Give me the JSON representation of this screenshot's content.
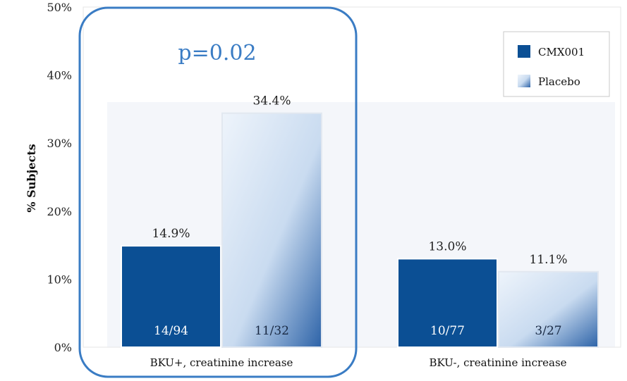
{
  "chart_data": {
    "type": "bar",
    "ylabel": "% Subjects",
    "ylim": [
      0,
      50
    ],
    "yticks": [
      "0%",
      "10%",
      "20%",
      "30%",
      "40%",
      "50%"
    ],
    "categories": [
      "BKU+, creatinine increase",
      "BKU-, creatinine increase"
    ],
    "series": [
      {
        "name": "CMX001",
        "values": [
          14.9,
          13.0
        ],
        "labels": [
          "14.9%",
          "13.0%"
        ],
        "counts": [
          "14/94",
          "10/77"
        ],
        "color": "#0b4f94"
      },
      {
        "name": "Placebo",
        "values": [
          34.4,
          11.1
        ],
        "labels": [
          "34.4%",
          "11.1%"
        ],
        "counts": [
          "11/32",
          "3/27"
        ],
        "color": "#c9dbf0"
      }
    ],
    "annotation": {
      "text": "p=0.02",
      "color": "#3a7cc4",
      "category_index": 0
    },
    "legend_position": "top-right",
    "grid": false
  }
}
